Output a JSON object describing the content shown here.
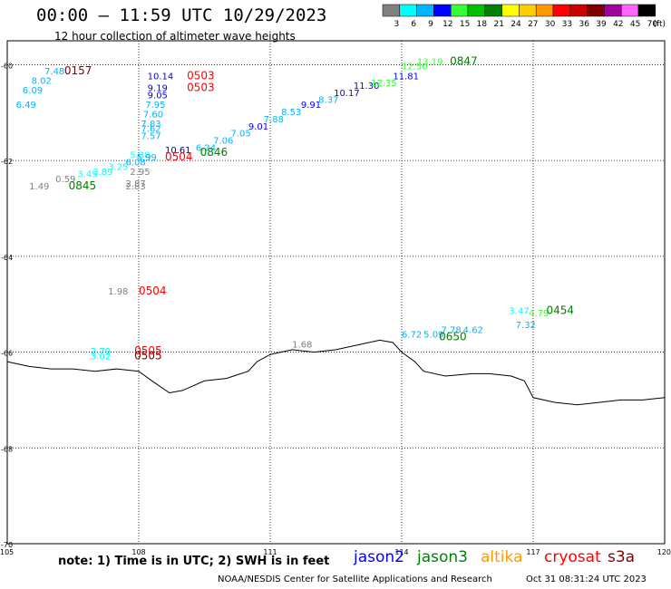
{
  "header": {
    "title": "00:00 – 11:59 UTC 10/29/2023",
    "subtitle": "12 hour collection of altimeter wave heights"
  },
  "color_scale": {
    "bins": [
      {
        "label": "3",
        "color": "#808080"
      },
      {
        "label": "6",
        "color": "#00ffff"
      },
      {
        "label": "9",
        "color": "#00b4ff"
      },
      {
        "label": "12",
        "color": "#0000ff"
      },
      {
        "label": "15",
        "color": "#33ff33"
      },
      {
        "label": "18",
        "color": "#00c000"
      },
      {
        "label": "21",
        "color": "#008000"
      },
      {
        "label": "24",
        "color": "#ffff00"
      },
      {
        "label": "27",
        "color": "#ffcc00"
      },
      {
        "label": "30",
        "color": "#ff9900"
      },
      {
        "label": "33",
        "color": "#ff0000"
      },
      {
        "label": "36",
        "color": "#cc0000"
      },
      {
        "label": "39",
        "color": "#800000"
      },
      {
        "label": "42",
        "color": "#a000a0"
      },
      {
        "label": "45",
        "color": "#ff66ff"
      },
      {
        "label": "70",
        "color": "#000000"
      }
    ],
    "unit": "(ft)"
  },
  "map": {
    "lat_ticks": [
      "-60",
      "-62",
      "-64",
      "-66",
      "-68",
      "-70"
    ],
    "lon_ticks": [
      "105",
      "108",
      "111",
      "114",
      "117",
      "120"
    ]
  },
  "coastline": [
    [
      105.0,
      -66.2
    ],
    [
      105.5,
      -66.3
    ],
    [
      106.0,
      -66.35
    ],
    [
      106.5,
      -66.35
    ],
    [
      107.0,
      -66.4
    ],
    [
      107.5,
      -66.35
    ],
    [
      108.0,
      -66.4
    ],
    [
      108.3,
      -66.6
    ],
    [
      108.7,
      -66.85
    ],
    [
      109.0,
      -66.8
    ],
    [
      109.5,
      -66.6
    ],
    [
      110.0,
      -66.55
    ],
    [
      110.5,
      -66.4
    ],
    [
      110.7,
      -66.2
    ],
    [
      111.0,
      -66.05
    ],
    [
      111.5,
      -65.95
    ],
    [
      112.0,
      -66.0
    ],
    [
      112.5,
      -65.95
    ],
    [
      113.0,
      -65.85
    ],
    [
      113.5,
      -65.75
    ],
    [
      113.8,
      -65.8
    ],
    [
      114.0,
      -66.0
    ],
    [
      114.3,
      -66.2
    ],
    [
      114.5,
      -66.4
    ],
    [
      115.0,
      -66.5
    ],
    [
      115.6,
      -66.45
    ],
    [
      116.0,
      -66.45
    ],
    [
      116.5,
      -66.5
    ],
    [
      116.8,
      -66.6
    ],
    [
      117.0,
      -66.95
    ],
    [
      117.5,
      -67.05
    ],
    [
      118.0,
      -67.1
    ],
    [
      118.5,
      -67.05
    ],
    [
      119.0,
      -67.0
    ],
    [
      119.5,
      -67.0
    ],
    [
      120.0,
      -66.95
    ]
  ],
  "observations": [
    {
      "lon": 105.85,
      "lat": -60.2,
      "text": "7.48",
      "color": "#00b4ff"
    },
    {
      "lon": 105.55,
      "lat": -60.4,
      "text": "8.02",
      "color": "#00b4ff"
    },
    {
      "lon": 105.35,
      "lat": -60.6,
      "text": "6.09",
      "color": "#00b4ff"
    },
    {
      "lon": 105.2,
      "lat": -60.9,
      "text": "6.49",
      "color": "#00b4ff"
    },
    {
      "lon": 106.3,
      "lat": -60.2,
      "text": "0157",
      "color": "#800000",
      "big": true
    },
    {
      "lon": 108.2,
      "lat": -60.3,
      "text": "10.14",
      "color": "#0000ff"
    },
    {
      "lon": 108.2,
      "lat": -60.55,
      "text": "9.19",
      "color": "#0000ff"
    },
    {
      "lon": 108.2,
      "lat": -60.7,
      "text": "9.05",
      "color": "#0000ff"
    },
    {
      "lon": 109.1,
      "lat": -60.3,
      "text": "0503",
      "color": "#ff0000",
      "big": true
    },
    {
      "lon": 109.1,
      "lat": -60.55,
      "text": "0503",
      "color": "#ff0000",
      "big": true
    },
    {
      "lon": 108.15,
      "lat": -60.9,
      "text": "7.95",
      "color": "#00b4ff"
    },
    {
      "lon": 108.1,
      "lat": -61.1,
      "text": "7.60",
      "color": "#00b4ff"
    },
    {
      "lon": 108.05,
      "lat": -61.3,
      "text": "7.83",
      "color": "#00b4ff"
    },
    {
      "lon": 108.05,
      "lat": -61.4,
      "text": "7.62",
      "color": "#00b4ff"
    },
    {
      "lon": 108.05,
      "lat": -61.55,
      "text": "7.57",
      "color": "#00b4ff"
    },
    {
      "lon": 108.6,
      "lat": -61.85,
      "text": "10.61",
      "color": "#000080"
    },
    {
      "lon": 108.6,
      "lat": -62.0,
      "text": "0504",
      "color": "#ff0000",
      "big": true
    },
    {
      "lon": 109.3,
      "lat": -61.8,
      "text": "6.24",
      "color": "#00b4ff"
    },
    {
      "lon": 109.7,
      "lat": -61.65,
      "text": "7.06",
      "color": "#00b4ff"
    },
    {
      "lon": 110.1,
      "lat": -61.5,
      "text": "7.05",
      "color": "#00b4ff"
    },
    {
      "lon": 110.5,
      "lat": -61.35,
      "text": "9.01",
      "color": "#0000ff"
    },
    {
      "lon": 110.85,
      "lat": -61.2,
      "text": "7.88",
      "color": "#00b4ff"
    },
    {
      "lon": 111.25,
      "lat": -61.05,
      "text": "8.53",
      "color": "#00b4ff"
    },
    {
      "lon": 111.7,
      "lat": -60.9,
      "text": "9.91",
      "color": "#0000ff"
    },
    {
      "lon": 112.1,
      "lat": -60.8,
      "text": "8.37",
      "color": "#00b4ff"
    },
    {
      "lon": 112.45,
      "lat": -60.65,
      "text": "10.17",
      "color": "#0000ff"
    },
    {
      "lon": 112.9,
      "lat": -60.5,
      "text": "11.30",
      "color": "#0000ff"
    },
    {
      "lon": 113.3,
      "lat": -60.45,
      "text": "12.35",
      "color": "#33ff33"
    },
    {
      "lon": 113.8,
      "lat": -60.3,
      "text": "11.81",
      "color": "#0000ff"
    },
    {
      "lon": 114.0,
      "lat": -60.1,
      "text": "12.50",
      "color": "#33ff33"
    },
    {
      "lon": 114.35,
      "lat": -60.0,
      "text": "13.19",
      "color": "#33ff33"
    },
    {
      "lon": 115.1,
      "lat": -60.0,
      "text": "0847",
      "color": "#008000",
      "big": true
    },
    {
      "lon": 109.4,
      "lat": -61.9,
      "text": "0846",
      "color": "#008000",
      "big": true
    },
    {
      "lon": 107.8,
      "lat": -61.95,
      "text": "5.38",
      "color": "#00ffff"
    },
    {
      "lon": 107.95,
      "lat": -62.0,
      "text": "5.99",
      "color": "#00b4ff"
    },
    {
      "lon": 107.7,
      "lat": -62.1,
      "text": "6.08",
      "color": "#00b4ff"
    },
    {
      "lon": 107.3,
      "lat": -62.2,
      "text": "3.25",
      "color": "#00ffff"
    },
    {
      "lon": 106.95,
      "lat": -62.3,
      "text": "3.89",
      "color": "#00ffff"
    },
    {
      "lon": 106.6,
      "lat": -62.35,
      "text": "3.45",
      "color": "#00ffff"
    },
    {
      "lon": 107.8,
      "lat": -62.3,
      "text": "2.95",
      "color": "#808080"
    },
    {
      "lon": 106.1,
      "lat": -62.45,
      "text": "0.59",
      "color": "#808080"
    },
    {
      "lon": 107.7,
      "lat": -62.55,
      "text": "2.87",
      "color": "#808080"
    },
    {
      "lon": 107.7,
      "lat": -62.6,
      "text": "2.83",
      "color": "#808080"
    },
    {
      "lon": 105.5,
      "lat": -62.6,
      "text": "1.49",
      "color": "#808080"
    },
    {
      "lon": 106.4,
      "lat": -62.6,
      "text": "0845",
      "color": "#008000",
      "big": true
    },
    {
      "lon": 107.3,
      "lat": -64.8,
      "text": "1.98",
      "color": "#808080"
    },
    {
      "lon": 108.0,
      "lat": -64.8,
      "text": "0504",
      "color": "#ff0000",
      "big": true
    },
    {
      "lon": 106.9,
      "lat": -66.05,
      "text": "2.79",
      "color": "#00ffff"
    },
    {
      "lon": 106.9,
      "lat": -66.15,
      "text": "3.02",
      "color": "#00ffff"
    },
    {
      "lon": 107.9,
      "lat": -66.05,
      "text": "0505",
      "color": "#ff0000",
      "big": true
    },
    {
      "lon": 107.9,
      "lat": -66.15,
      "text": "0505",
      "color": "#800000",
      "big": true
    },
    {
      "lon": 111.5,
      "lat": -65.9,
      "text": "1.68",
      "color": "#808080"
    },
    {
      "lon": 114.0,
      "lat": -65.7,
      "text": "6.72",
      "color": "#00b4ff"
    },
    {
      "lon": 114.5,
      "lat": -65.7,
      "text": "5.09",
      "color": "#00b4ff"
    },
    {
      "lon": 114.9,
      "lat": -65.6,
      "text": "7.78",
      "color": "#00b4ff"
    },
    {
      "lon": 115.4,
      "lat": -65.6,
      "text": "4.62",
      "color": "#00b4ff"
    },
    {
      "lon": 116.6,
      "lat": -65.5,
      "text": "7.32",
      "color": "#00b4ff"
    },
    {
      "lon": 114.85,
      "lat": -65.75,
      "text": "0650",
      "color": "#008000",
      "big": true
    },
    {
      "lon": 116.45,
      "lat": -65.2,
      "text": "3.47",
      "color": "#00ffff"
    },
    {
      "lon": 116.9,
      "lat": -65.25,
      "text": "4.79",
      "color": "#33ff33"
    },
    {
      "lon": 117.3,
      "lat": -65.2,
      "text": "0454",
      "color": "#008000",
      "big": true
    }
  ],
  "footer": {
    "note": "note:  1) Time is in UTC;  2) SWH is in feet",
    "credit": "NOAA/NESDIS Center for Satellite Applications and Research",
    "timestamp": "Oct 31 08:31:24 UTC 2023",
    "satellites": [
      {
        "name": "jason2",
        "color": "#0000ff"
      },
      {
        "name": "jason3",
        "color": "#008000"
      },
      {
        "name": "altika",
        "color": "#ff9900"
      },
      {
        "name": "cryosat",
        "color": "#ff0000"
      },
      {
        "name": "s3a",
        "color": "#800000"
      }
    ]
  }
}
